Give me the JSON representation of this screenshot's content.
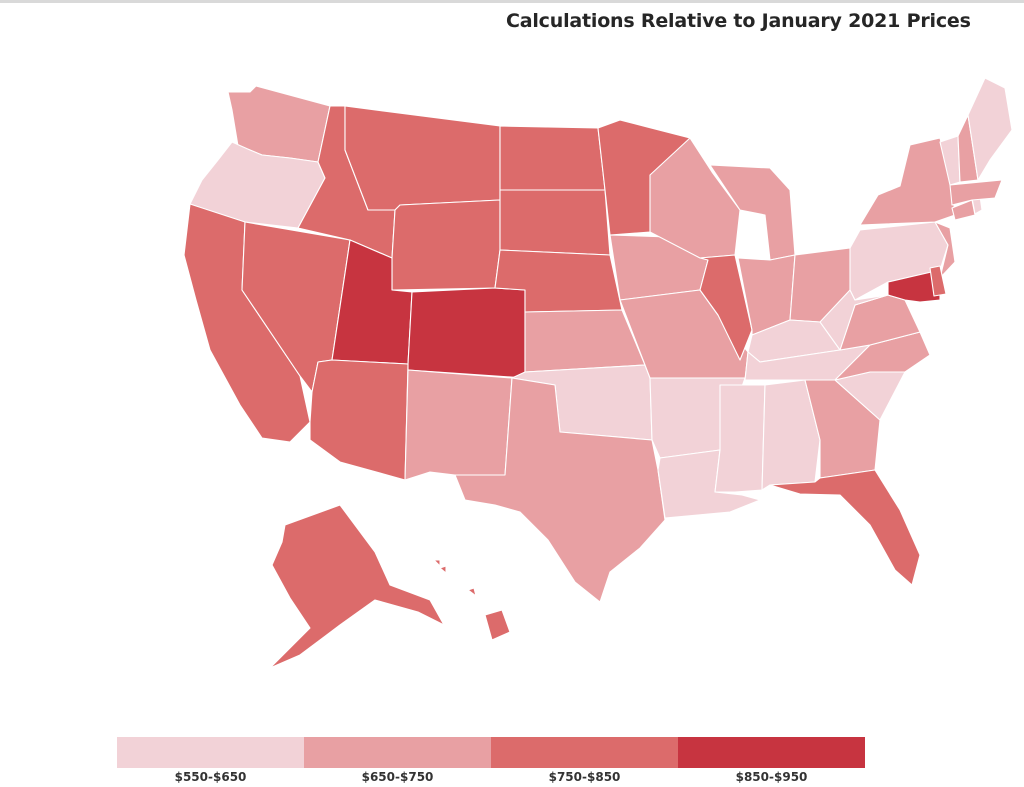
{
  "title": "Calculations Relative to January 2021 Prices",
  "legend": {
    "bins": [
      {
        "label": "$550-$650",
        "color": "#f2d2d7"
      },
      {
        "label": "$650-$750",
        "color": "#e8a0a3"
      },
      {
        "label": "$750-$850",
        "color": "#dc6b6b"
      },
      {
        "label": "$850-$950",
        "color": "#c73440"
      }
    ]
  },
  "map_data": {
    "type": "choropleth",
    "region": "United States",
    "unit_bins": [
      "$550-$650",
      "$650-$750",
      "$750-$850",
      "$850-$950"
    ],
    "states": {
      "WA": 1,
      "OR": 0,
      "CA": 2,
      "NV": 2,
      "ID": 2,
      "MT": 2,
      "WY": 2,
      "UT": 3,
      "CO": 3,
      "AZ": 2,
      "NM": 1,
      "ND": 2,
      "SD": 2,
      "NE": 2,
      "KS": 1,
      "OK": 0,
      "TX": 1,
      "MN": 2,
      "IA": 1,
      "MO": 1,
      "AR": 0,
      "LA": 0,
      "WI": 1,
      "IL": 2,
      "MI": 1,
      "IN": 1,
      "OH": 1,
      "KY": 0,
      "TN": 0,
      "MS": 0,
      "AL": 0,
      "GA": 1,
      "FL": 2,
      "SC": 0,
      "NC": 1,
      "VA": 1,
      "WV": 0,
      "PA": 0,
      "NY": 1,
      "VT": 0,
      "NH": 1,
      "ME": 0,
      "MA": 1,
      "CT": 1,
      "RI": 0,
      "NJ": 1,
      "DE": 2,
      "MD": 3,
      "AK": 2,
      "HI": 2
    }
  }
}
